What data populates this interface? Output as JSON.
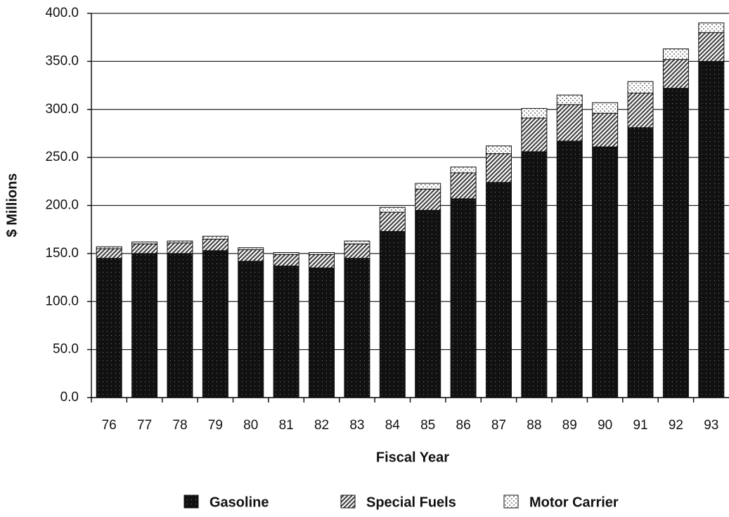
{
  "chart_data": {
    "type": "stacked-bar",
    "x_label": "Fiscal Year",
    "y_label": "$ Millions",
    "categories": [
      "76",
      "77",
      "78",
      "79",
      "80",
      "81",
      "82",
      "83",
      "84",
      "85",
      "86",
      "87",
      "88",
      "89",
      "90",
      "91",
      "92",
      "93"
    ],
    "series": [
      {
        "name": "Gasoline",
        "color": "#111111",
        "values": [
          145,
          150,
          150,
          153,
          142,
          137,
          135,
          145,
          173,
          195,
          207,
          224,
          256,
          267,
          261,
          281,
          322,
          350
        ]
      },
      {
        "name": "Special Fuels",
        "color": "#444444",
        "values": [
          10,
          10,
          11,
          12,
          12,
          12,
          14,
          15,
          20,
          22,
          27,
          30,
          35,
          38,
          35,
          36,
          30,
          30
        ]
      },
      {
        "name": "Motor Carrier",
        "color": "#999999",
        "values": [
          2,
          2,
          2,
          3,
          2,
          2,
          2,
          3,
          5,
          6,
          6,
          8,
          10,
          10,
          11,
          12,
          11,
          10
        ]
      }
    ],
    "ylim": [
      0,
      400
    ],
    "yticks": [
      {
        "value": 0,
        "label": "0.0"
      },
      {
        "value": 50,
        "label": "50.0"
      },
      {
        "value": 100,
        "label": "100.0"
      },
      {
        "value": 150,
        "label": "150.0"
      },
      {
        "value": 200,
        "label": "200.0"
      },
      {
        "value": 250,
        "label": "250.0"
      },
      {
        "value": 300,
        "label": "300.0"
      },
      {
        "value": 350,
        "label": "350.0"
      },
      {
        "value": 400,
        "label": "400.0"
      }
    ],
    "grid": true
  }
}
